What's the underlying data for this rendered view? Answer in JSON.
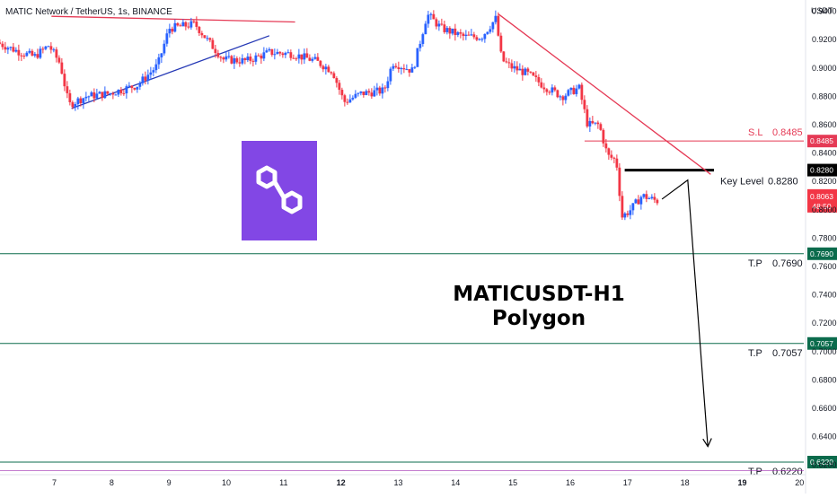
{
  "header": {
    "symbol_info": "MATIC Network / TetherUS, 1s, BINANCE"
  },
  "main_title": {
    "line1": "MATICUSDT-H1",
    "line2": "Polygon"
  },
  "logo": {
    "icon": "polygon-logo-icon",
    "color": "#8247e5"
  },
  "colors": {
    "up": "#2962ff",
    "down": "#f23645",
    "target": "#0b6b4c",
    "stop": "#e53a55",
    "key": "#000000",
    "trend_up": "#2538b5",
    "trend_down": "#e53a55",
    "baseline": "#9c27b0"
  },
  "chart_data": {
    "type": "candlestick",
    "quote_label": "USDT",
    "y_ticks": [
      0.94,
      0.92,
      0.9,
      0.88,
      0.86,
      0.84,
      0.82,
      0.8,
      0.78,
      0.76,
      0.74,
      0.72,
      0.7,
      0.68,
      0.66,
      0.64,
      0.62
    ],
    "ylim": [
      0.6125,
      0.948
    ],
    "x_ticks": [
      {
        "label": "7",
        "day": 7,
        "bold": false
      },
      {
        "label": "8",
        "day": 8,
        "bold": false
      },
      {
        "label": "9",
        "day": 9,
        "bold": false
      },
      {
        "label": "10",
        "day": 10,
        "bold": false
      },
      {
        "label": "11",
        "day": 11,
        "bold": false
      },
      {
        "label": "12",
        "day": 12,
        "bold": true
      },
      {
        "label": "13",
        "day": 13,
        "bold": false
      },
      {
        "label": "14",
        "day": 14,
        "bold": false
      },
      {
        "label": "15",
        "day": 15,
        "bold": false
      },
      {
        "label": "16",
        "day": 16,
        "bold": false
      },
      {
        "label": "17",
        "day": 17,
        "bold": false
      },
      {
        "label": "18",
        "day": 18,
        "bold": false
      },
      {
        "label": "19",
        "day": 19,
        "bold": true
      },
      {
        "label": "20",
        "day": 20,
        "bold": false
      }
    ],
    "price_path": [
      [
        6.05,
        0.918
      ],
      [
        6.4,
        0.912
      ],
      [
        6.7,
        0.908
      ],
      [
        6.95,
        0.916
      ],
      [
        7.15,
        0.903
      ],
      [
        7.3,
        0.874
      ],
      [
        7.6,
        0.88
      ],
      [
        8.0,
        0.882
      ],
      [
        8.5,
        0.888
      ],
      [
        8.85,
        0.902
      ],
      [
        9.05,
        0.928
      ],
      [
        9.5,
        0.931
      ],
      [
        9.75,
        0.918
      ],
      [
        10.0,
        0.906
      ],
      [
        10.4,
        0.905
      ],
      [
        10.8,
        0.911
      ],
      [
        11.2,
        0.91
      ],
      [
        11.6,
        0.905
      ],
      [
        11.9,
        0.898
      ],
      [
        12.1,
        0.876
      ],
      [
        12.4,
        0.882
      ],
      [
        12.8,
        0.884
      ],
      [
        12.95,
        0.904
      ],
      [
        13.3,
        0.898
      ],
      [
        13.55,
        0.938
      ],
      [
        13.8,
        0.928
      ],
      [
        14.2,
        0.922
      ],
      [
        14.5,
        0.922
      ],
      [
        14.75,
        0.935
      ],
      [
        14.85,
        0.906
      ],
      [
        15.0,
        0.901
      ],
      [
        15.3,
        0.896
      ],
      [
        15.6,
        0.887
      ],
      [
        15.9,
        0.88
      ],
      [
        16.2,
        0.886
      ],
      [
        16.35,
        0.86
      ],
      [
        16.55,
        0.86
      ],
      [
        16.7,
        0.838
      ],
      [
        16.85,
        0.835
      ],
      [
        16.95,
        0.795
      ],
      [
        17.1,
        0.8
      ],
      [
        17.3,
        0.81
      ],
      [
        17.55,
        0.8063
      ]
    ],
    "current_price": {
      "value": "0.8063",
      "countdown": "48:50"
    },
    "levels": [
      {
        "name": "S.L",
        "value": "0.8485",
        "price": 0.8485,
        "color": "#e53a55",
        "start_day": 16.25
      },
      {
        "name": "Key Level",
        "value": "0.8280",
        "price": 0.828,
        "color": "#000000",
        "start_day": 16.95
      },
      {
        "name": "T.P",
        "value": "0.7690",
        "price": 0.769,
        "color": "#0b6b4c",
        "start_day": 6.05
      },
      {
        "name": "T.P",
        "value": "0.7057",
        "price": 0.7057,
        "color": "#0b6b4c",
        "start_day": 6.05
      },
      {
        "name": "T.P",
        "value": "0.6220",
        "price": 0.622,
        "color": "#0b6b4c",
        "start_day": 6.05
      }
    ],
    "trendlines": [
      {
        "name": "upper-resistance",
        "color": "#e53a55",
        "points": [
          [
            6.95,
            0.9365
          ],
          [
            11.2,
            0.9325
          ]
        ]
      },
      {
        "name": "rising-support",
        "color": "#2538b5",
        "points": [
          [
            7.3,
            0.8715
          ],
          [
            10.75,
            0.9228
          ]
        ]
      },
      {
        "name": "descending-resistance",
        "color": "#e53a55",
        "points": [
          [
            14.75,
            0.938
          ],
          [
            18.45,
            0.825
          ]
        ]
      }
    ],
    "projection": [
      [
        17.6,
        0.8075
      ],
      [
        18.05,
        0.821
      ],
      [
        18.4,
        0.633
      ]
    ],
    "baseline_price": 0.616
  }
}
